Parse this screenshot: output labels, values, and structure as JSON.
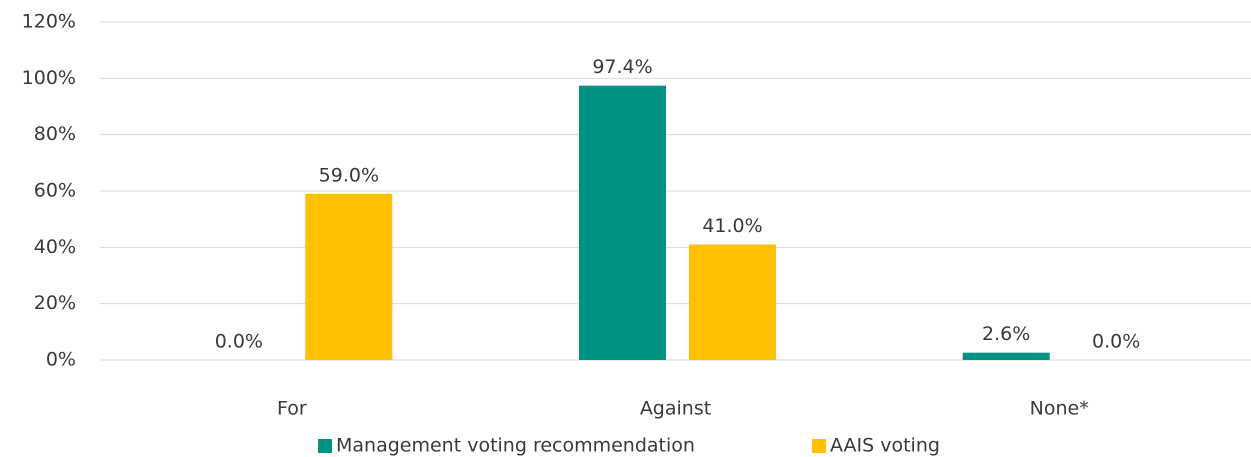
{
  "chart_data": {
    "type": "bar",
    "categories": [
      "For",
      "Against",
      "None*"
    ],
    "series": [
      {
        "name": "Management voting recommendation",
        "color": "#009383",
        "values": [
          0,
          97.4,
          2.6
        ],
        "value_labels": [
          "0.0%",
          "97.4%",
          "2.6%"
        ]
      },
      {
        "name": "AAIS voting",
        "color": "#ffc000",
        "values": [
          59,
          41,
          0
        ],
        "value_labels": [
          "59.0%",
          "41.0%",
          "0.0%"
        ]
      }
    ],
    "ylim": [
      0,
      120
    ],
    "yticks": [
      {
        "value": 0,
        "label": "0%"
      },
      {
        "value": 20,
        "label": "20%"
      },
      {
        "value": 40,
        "label": "40%"
      },
      {
        "value": 60,
        "label": "60%"
      },
      {
        "value": 80,
        "label": "80%"
      },
      {
        "value": 100,
        "label": "100%"
      },
      {
        "value": 120,
        "label": "120%"
      }
    ],
    "grid": true,
    "legend": "bottom"
  }
}
